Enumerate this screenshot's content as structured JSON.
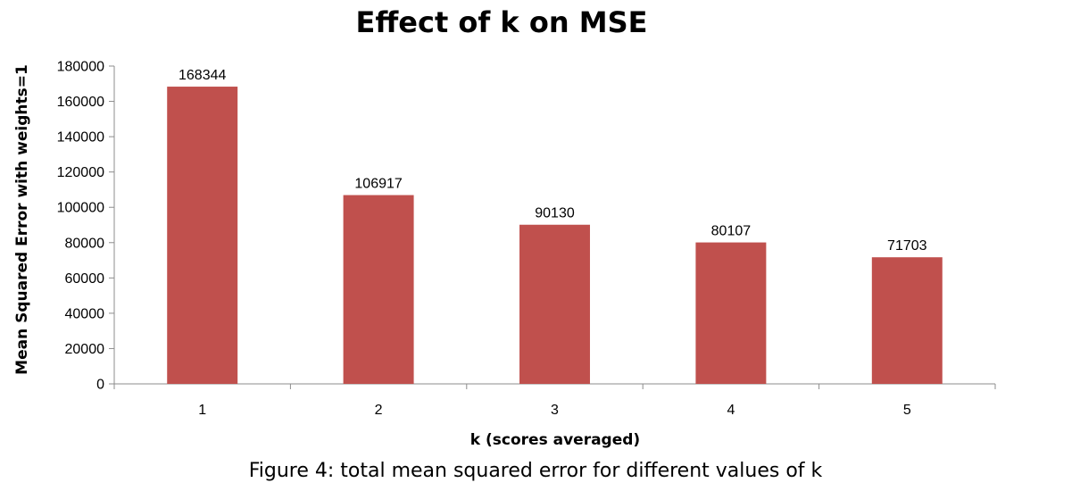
{
  "chart_data": {
    "type": "bar",
    "title": "Effect of k on MSE",
    "xlabel": "k (scores averaged)",
    "ylabel": "Mean Squared Error with weights=1",
    "categories": [
      "1",
      "2",
      "3",
      "4",
      "5"
    ],
    "values": [
      168344,
      106917,
      90130,
      80107,
      71703
    ],
    "data_labels": [
      "168344",
      "106917",
      "90130",
      "80107",
      "71703"
    ],
    "ylim": [
      0,
      180000
    ],
    "yticks": [
      0,
      20000,
      40000,
      60000,
      80000,
      100000,
      120000,
      140000,
      160000,
      180000
    ],
    "ytick_labels": [
      "0",
      "20000",
      "40000",
      "60000",
      "80000",
      "100000",
      "120000",
      "140000",
      "160000",
      "180000"
    ],
    "grid": false,
    "legend": "none",
    "bar_color": "#c0504d"
  },
  "caption": "Figure 4: total mean squared error for different values of k"
}
